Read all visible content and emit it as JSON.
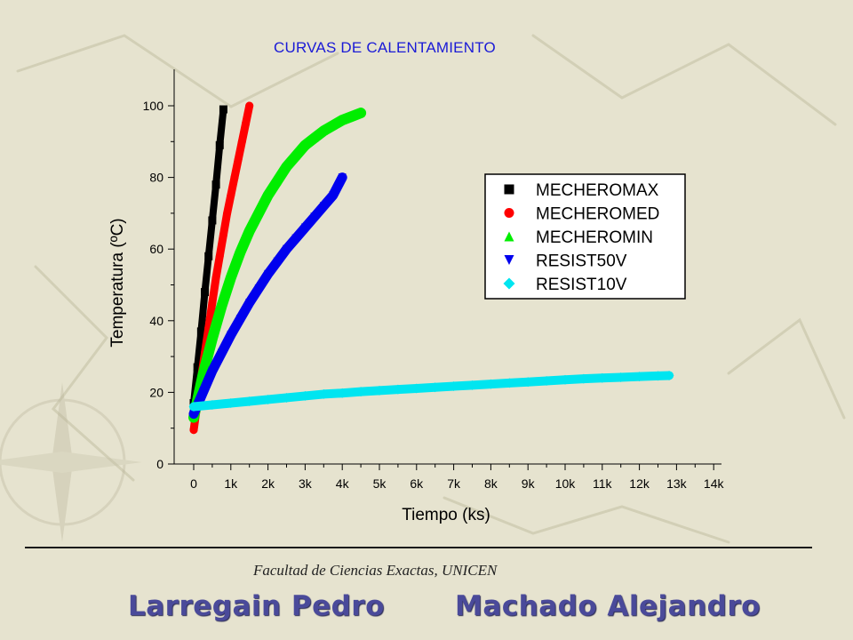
{
  "slide": {
    "title": "CURVAS DE CALENTAMIENTO",
    "footer_institution": "Facultad de Ciencias Exactas, UNICEN",
    "authors": [
      "Larregain Pedro",
      "Machado Alejandro"
    ]
  },
  "chart_data": {
    "type": "scatter",
    "title": "CURVAS DE CALENTAMIENTO",
    "xlabel": "Tiempo (ks)",
    "ylabel": "Temperatura (ºC)",
    "xlim": [
      -500,
      14000
    ],
    "ylim": [
      0,
      108
    ],
    "x_ticks": [
      0,
      1000,
      2000,
      3000,
      4000,
      5000,
      6000,
      7000,
      8000,
      9000,
      10000,
      11000,
      12000,
      13000,
      14000
    ],
    "x_tick_labels": [
      "0",
      "1k",
      "2k",
      "3k",
      "4k",
      "5k",
      "6k",
      "7k",
      "8k",
      "9k",
      "10k",
      "11k",
      "12k",
      "13k",
      "14k"
    ],
    "y_ticks": [
      0,
      20,
      40,
      60,
      80,
      100
    ],
    "y_tick_labels": [
      "0",
      "20",
      "40",
      "60",
      "80",
      "100"
    ],
    "grid": false,
    "legend_position": "right",
    "series": [
      {
        "name": "MECHEROMAX",
        "marker": "square",
        "color": "#000000",
        "x": [
          0,
          100,
          200,
          300,
          400,
          500,
          600,
          700,
          800
        ],
        "y": [
          17,
          27,
          37,
          48,
          58,
          68,
          78,
          89,
          99
        ]
      },
      {
        "name": "MECHEROMED",
        "marker": "circle",
        "color": "#ff0000",
        "x": [
          0,
          100,
          200,
          300,
          400,
          500,
          600,
          700,
          800,
          900,
          1000,
          1100,
          1200,
          1300,
          1400,
          1500
        ],
        "y": [
          9.5,
          17,
          24,
          31,
          38,
          45,
          52,
          58,
          64,
          70,
          75,
          80,
          85,
          90,
          95,
          100
        ]
      },
      {
        "name": "MECHEROMIN",
        "marker": "triangle-up",
        "color": "#00ee00",
        "x": [
          0,
          250,
          500,
          750,
          1000,
          1250,
          1500,
          1750,
          2000,
          2250,
          2500,
          2750,
          3000,
          3250,
          3500,
          3750,
          4000,
          4250,
          4500
        ],
        "y": [
          13,
          25,
          35,
          44,
          52,
          59,
          65,
          70,
          75,
          79,
          83,
          86,
          89,
          91,
          93,
          94.5,
          96,
          97,
          98
        ]
      },
      {
        "name": "RESIST50V",
        "marker": "triangle-down",
        "color": "#0000ee",
        "x": [
          0,
          250,
          500,
          750,
          1000,
          1250,
          1500,
          1750,
          2000,
          2250,
          2500,
          2750,
          3000,
          3250,
          3500,
          3750,
          4000
        ],
        "y": [
          14,
          20,
          26,
          31,
          36,
          40.5,
          45,
          49,
          53,
          56.5,
          60,
          63,
          66,
          69,
          72,
          75,
          80
        ]
      },
      {
        "name": "RESIST10V",
        "marker": "diamond",
        "color": "#00e5f0",
        "x": [
          0,
          500,
          1000,
          1500,
          2000,
          2500,
          3000,
          3500,
          4000,
          4500,
          5000,
          5500,
          6000,
          6500,
          7000,
          7500,
          8000,
          8500,
          9000,
          9500,
          10000,
          10500,
          11000,
          11500,
          12000,
          12500,
          12800
        ],
        "y": [
          16,
          16.5,
          17,
          17.5,
          18,
          18.5,
          19,
          19.5,
          19.8,
          20.2,
          20.5,
          20.8,
          21.1,
          21.4,
          21.7,
          22,
          22.3,
          22.6,
          22.9,
          23.2,
          23.5,
          23.8,
          24,
          24.2,
          24.4,
          24.6,
          24.7
        ]
      }
    ]
  }
}
